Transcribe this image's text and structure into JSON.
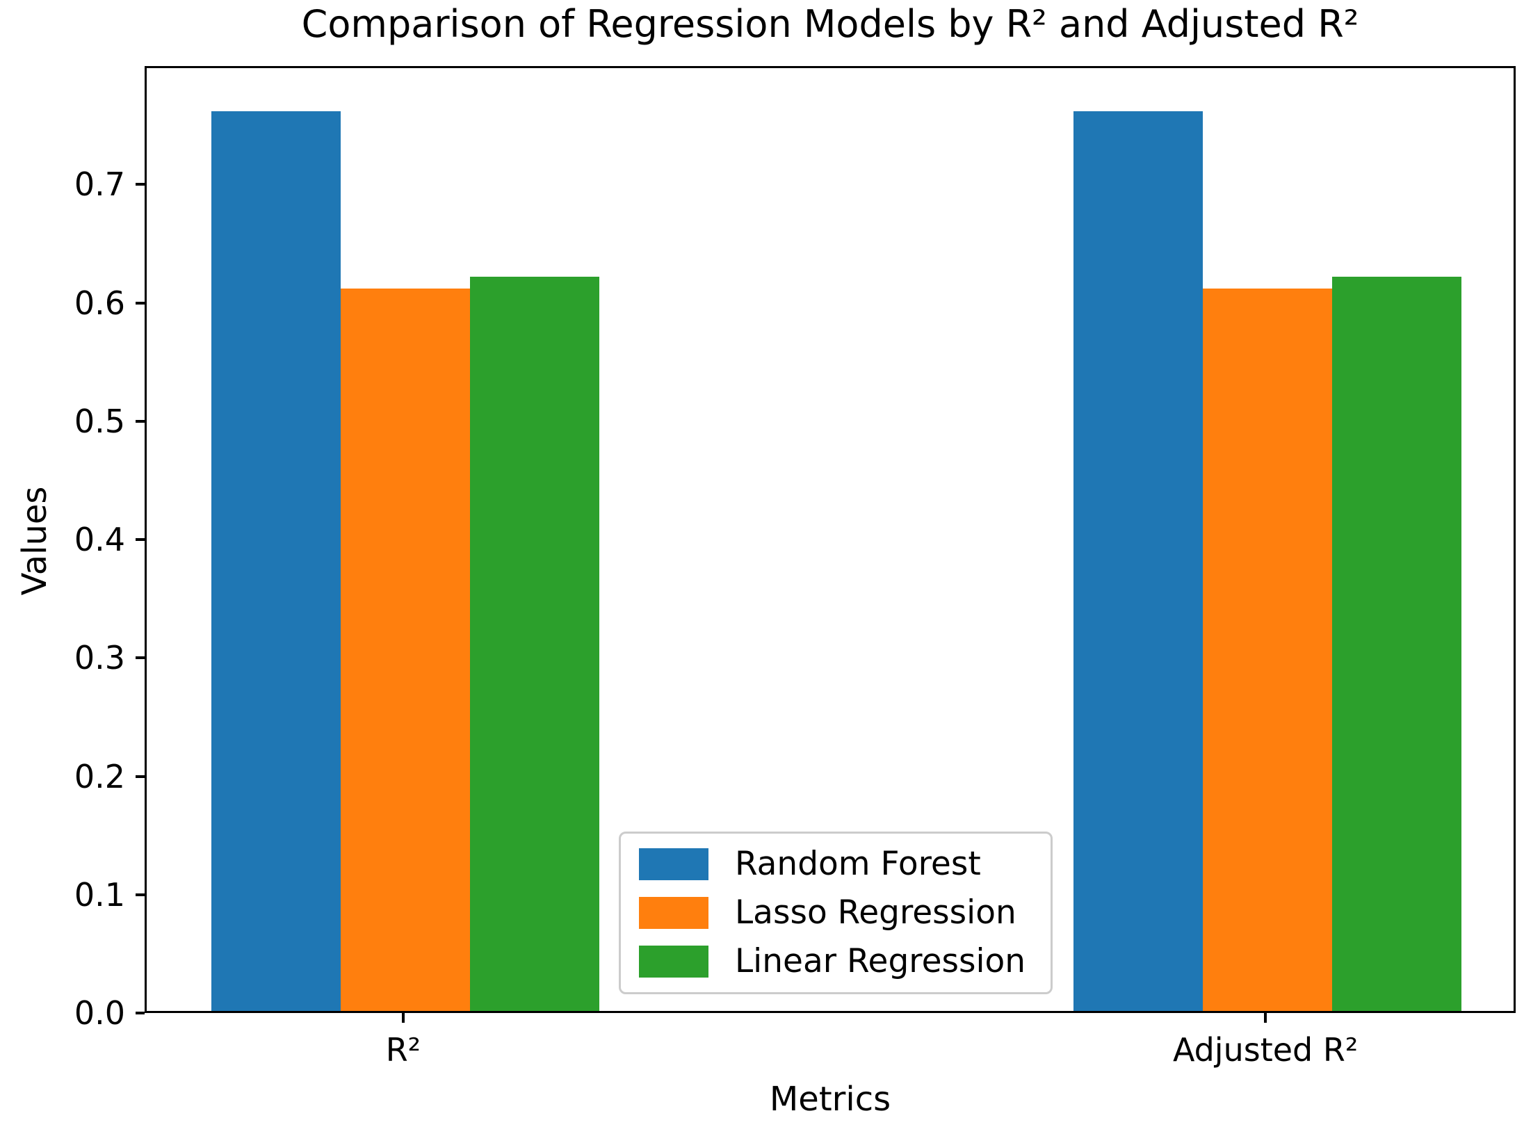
{
  "chart_data": {
    "type": "bar",
    "title": "Comparison of Regression Models by R² and Adjusted R²",
    "xlabel": "Metrics",
    "ylabel": "Values",
    "categories": [
      "R²",
      "Adjusted R²"
    ],
    "series": [
      {
        "name": "Random Forest",
        "color": "#1f77b4",
        "values": [
          0.76,
          0.76
        ]
      },
      {
        "name": "Lasso Regression",
        "color": "#ff7f0e",
        "values": [
          0.61,
          0.61
        ]
      },
      {
        "name": "Linear Regression",
        "color": "#2ca02c",
        "values": [
          0.62,
          0.62
        ]
      }
    ],
    "ylim": [
      0,
      0.8
    ],
    "yticks": [
      0.0,
      0.1,
      0.2,
      0.3,
      0.4,
      0.5,
      0.6,
      0.7
    ],
    "ytick_labels": [
      "0.0",
      "0.1",
      "0.2",
      "0.3",
      "0.4",
      "0.5",
      "0.6",
      "0.7"
    ],
    "grid": false,
    "legend_position": "lower center inside",
    "colors": {
      "background": "#ffffff",
      "spines": "#000000",
      "text": "#000000",
      "legend_border": "#cccccc"
    }
  }
}
